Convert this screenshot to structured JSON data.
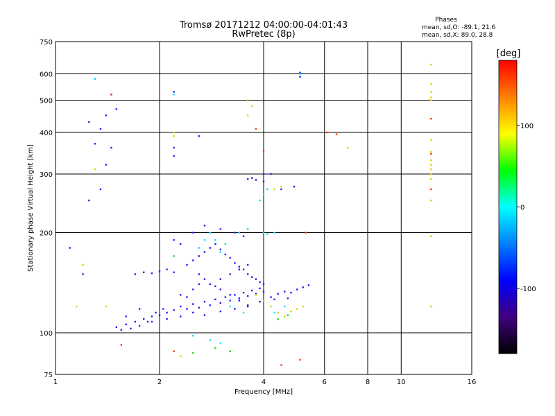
{
  "chart_data": {
    "type": "scatter",
    "title": "Tromsø 20171212 04:00:00-04:01:43",
    "subtitle": "RwPretec (8p)",
    "xlabel": "Frequency [MHz]",
    "ylabel": "Stationary phase Virtual Height [km]",
    "x_scale": "log",
    "y_scale": "log",
    "xlim": [
      1,
      16
    ],
    "ylim": [
      75,
      750
    ],
    "x_ticks": [
      1,
      2,
      4,
      6,
      8,
      10,
      16
    ],
    "y_ticks": [
      75,
      100,
      200,
      300,
      400,
      500,
      600,
      750
    ],
    "grid": true,
    "info": {
      "heading": "Phases",
      "line_o": "mean, sd,O: -89.1, 21.6",
      "line_x": "mean, sd,X:  89.0, 28.8"
    },
    "colorbar": {
      "label": "[deg]",
      "range": [
        -180,
        180
      ],
      "ticks": [
        100,
        0,
        -100
      ],
      "colors": [
        "#ff0000",
        "#ff8000",
        "#ffff00",
        "#00ff00",
        "#00ffff",
        "#0080ff",
        "#0000ff",
        "#400080",
        "#000000"
      ]
    },
    "series": [
      {
        "description": "blue/violet (ordinary-mode) traces",
        "color": "#2020ff",
        "points": [
          [
            1.5,
            104
          ],
          [
            1.55,
            102
          ],
          [
            1.6,
            106
          ],
          [
            1.65,
            103
          ],
          [
            1.7,
            108
          ],
          [
            1.75,
            105
          ],
          [
            1.8,
            110
          ],
          [
            1.85,
            108
          ],
          [
            1.9,
            112
          ],
          [
            1.95,
            115
          ],
          [
            2.0,
            113
          ],
          [
            2.05,
            118
          ],
          [
            2.1,
            115
          ],
          [
            2.2,
            117
          ],
          [
            2.3,
            120
          ],
          [
            2.4,
            118
          ],
          [
            2.5,
            122
          ],
          [
            2.6,
            119
          ],
          [
            2.7,
            124
          ],
          [
            2.8,
            121
          ],
          [
            2.9,
            126
          ],
          [
            3.0,
            123
          ],
          [
            3.1,
            128
          ],
          [
            3.2,
            125
          ],
          [
            3.3,
            130
          ],
          [
            3.4,
            127
          ],
          [
            3.5,
            132
          ],
          [
            3.6,
            129
          ],
          [
            3.7,
            134
          ],
          [
            3.8,
            131
          ],
          [
            3.9,
            136
          ],
          [
            4.0,
            133
          ],
          [
            4.2,
            128
          ],
          [
            4.4,
            131
          ],
          [
            4.6,
            133
          ],
          [
            4.8,
            132
          ],
          [
            5.0,
            135
          ],
          [
            5.2,
            137
          ],
          [
            5.4,
            139
          ],
          [
            1.7,
            150
          ],
          [
            1.8,
            152
          ],
          [
            1.9,
            151
          ],
          [
            2.0,
            153
          ],
          [
            2.1,
            155
          ],
          [
            2.2,
            152
          ],
          [
            2.4,
            160
          ],
          [
            2.5,
            165
          ],
          [
            2.6,
            170
          ],
          [
            2.7,
            175
          ],
          [
            2.8,
            180
          ],
          [
            2.9,
            185
          ],
          [
            3.0,
            178
          ],
          [
            3.1,
            172
          ],
          [
            3.2,
            168
          ],
          [
            3.3,
            162
          ],
          [
            3.4,
            158
          ],
          [
            3.5,
            155
          ],
          [
            3.6,
            150
          ],
          [
            3.7,
            147
          ],
          [
            3.8,
            145
          ],
          [
            3.9,
            142
          ],
          [
            4.0,
            140
          ],
          [
            2.6,
            150
          ],
          [
            2.7,
            145
          ],
          [
            2.8,
            140
          ],
          [
            2.9,
            138
          ],
          [
            3.0,
            135
          ],
          [
            3.2,
            130
          ],
          [
            3.4,
            125
          ],
          [
            3.6,
            120
          ],
          [
            2.2,
            190
          ],
          [
            2.3,
            185
          ],
          [
            2.5,
            200
          ],
          [
            2.7,
            210
          ],
          [
            3.0,
            205
          ],
          [
            3.3,
            200
          ],
          [
            3.5,
            195
          ],
          [
            2.3,
            130
          ],
          [
            2.4,
            128
          ],
          [
            2.5,
            135
          ],
          [
            2.6,
            140
          ],
          [
            3.0,
            145
          ],
          [
            3.2,
            150
          ],
          [
            3.4,
            155
          ],
          [
            3.6,
            160
          ],
          [
            1.6,
            112
          ],
          [
            1.75,
            118
          ],
          [
            1.9,
            108
          ],
          [
            2.1,
            110
          ],
          [
            2.3,
            112
          ],
          [
            2.5,
            115
          ],
          [
            2.7,
            113
          ],
          [
            3.0,
            116
          ],
          [
            3.3,
            118
          ],
          [
            3.6,
            121
          ],
          [
            3.9,
            124
          ],
          [
            4.3,
            126
          ],
          [
            4.7,
            127
          ],
          [
            1.3,
            580
          ],
          [
            1.45,
            520
          ],
          [
            1.5,
            470
          ],
          [
            1.4,
            450
          ],
          [
            1.35,
            410
          ],
          [
            1.25,
            430
          ],
          [
            1.3,
            370
          ],
          [
            1.45,
            360
          ],
          [
            1.4,
            320
          ],
          [
            1.35,
            270
          ],
          [
            1.25,
            250
          ],
          [
            2.2,
            340
          ],
          [
            2.2,
            360
          ],
          [
            2.2,
            530
          ],
          [
            2.6,
            390
          ],
          [
            3.6,
            290
          ],
          [
            3.7,
            292
          ],
          [
            3.8,
            288
          ],
          [
            4.0,
            300
          ],
          [
            4.0,
            285
          ],
          [
            4.2,
            300
          ],
          [
            4.5,
            270
          ],
          [
            4.9,
            275
          ],
          [
            5.1,
            588
          ],
          [
            5.1,
            605
          ],
          [
            1.1,
            180
          ],
          [
            1.2,
            150
          ]
        ]
      },
      {
        "description": "cyan/green traces",
        "color": "#00e0ff",
        "points": [
          [
            2.6,
            180
          ],
          [
            2.7,
            190
          ],
          [
            2.8,
            200
          ],
          [
            2.9,
            190
          ],
          [
            3.0,
            175
          ],
          [
            3.1,
            185
          ],
          [
            3.4,
            200
          ],
          [
            3.6,
            205
          ],
          [
            4.0,
            200
          ],
          [
            4.1,
            198
          ],
          [
            4.3,
            200
          ],
          [
            3.9,
            250
          ],
          [
            4.0,
            260
          ],
          [
            4.1,
            270
          ],
          [
            3.2,
            120
          ],
          [
            3.5,
            115
          ],
          [
            4.3,
            115
          ],
          [
            4.6,
            120
          ],
          [
            1.3,
            580
          ],
          [
            2.2,
            520
          ],
          [
            5.1,
            600
          ],
          [
            3.0,
            93
          ],
          [
            2.8,
            95
          ],
          [
            2.5,
            98
          ]
        ]
      },
      {
        "description": "yellow/orange (extraordinary-mode) traces",
        "color": "#e0d000",
        "points": [
          [
            3.8,
            130
          ],
          [
            4.0,
            125
          ],
          [
            4.2,
            120
          ],
          [
            4.4,
            115
          ],
          [
            4.6,
            112
          ],
          [
            4.8,
            116
          ],
          [
            5.0,
            118
          ],
          [
            5.2,
            120
          ],
          [
            4.3,
            270
          ],
          [
            4.5,
            275
          ],
          [
            3.6,
            500
          ],
          [
            3.7,
            480
          ],
          [
            3.6,
            450
          ],
          [
            2.2,
            390
          ],
          [
            2.2,
            400
          ],
          [
            12.2,
            640
          ],
          [
            12.2,
            560
          ],
          [
            12.2,
            530
          ],
          [
            12.2,
            510
          ],
          [
            12.2,
            500
          ],
          [
            12.2,
            380
          ],
          [
            12.2,
            350
          ],
          [
            12.2,
            330
          ],
          [
            12.2,
            320
          ],
          [
            12.2,
            310
          ],
          [
            12.2,
            300
          ],
          [
            12.2,
            290
          ],
          [
            12.2,
            250
          ],
          [
            12.2,
            195
          ],
          [
            12.2,
            120
          ],
          [
            7.0,
            360
          ],
          [
            1.15,
            120
          ],
          [
            1.2,
            160
          ],
          [
            1.3,
            310
          ],
          [
            1.4,
            120
          ],
          [
            2.3,
            85
          ]
        ]
      },
      {
        "description": "red/orange scattered points",
        "color": "#ff3010",
        "points": [
          [
            1.45,
            520
          ],
          [
            3.8,
            410
          ],
          [
            4.0,
            350
          ],
          [
            6.1,
            400
          ],
          [
            6.5,
            395
          ],
          [
            12.2,
            440
          ],
          [
            12.2,
            345
          ],
          [
            12.2,
            270
          ],
          [
            5.3,
            200
          ],
          [
            1.55,
            92
          ],
          [
            4.5,
            80
          ],
          [
            5.1,
            83
          ],
          [
            2.2,
            88
          ]
        ]
      },
      {
        "description": "green points",
        "color": "#20d020",
        "points": [
          [
            2.5,
            87
          ],
          [
            2.9,
            90
          ],
          [
            3.2,
            88
          ],
          [
            2.2,
            170
          ],
          [
            4.4,
            110
          ],
          [
            4.7,
            113
          ]
        ]
      }
    ]
  }
}
